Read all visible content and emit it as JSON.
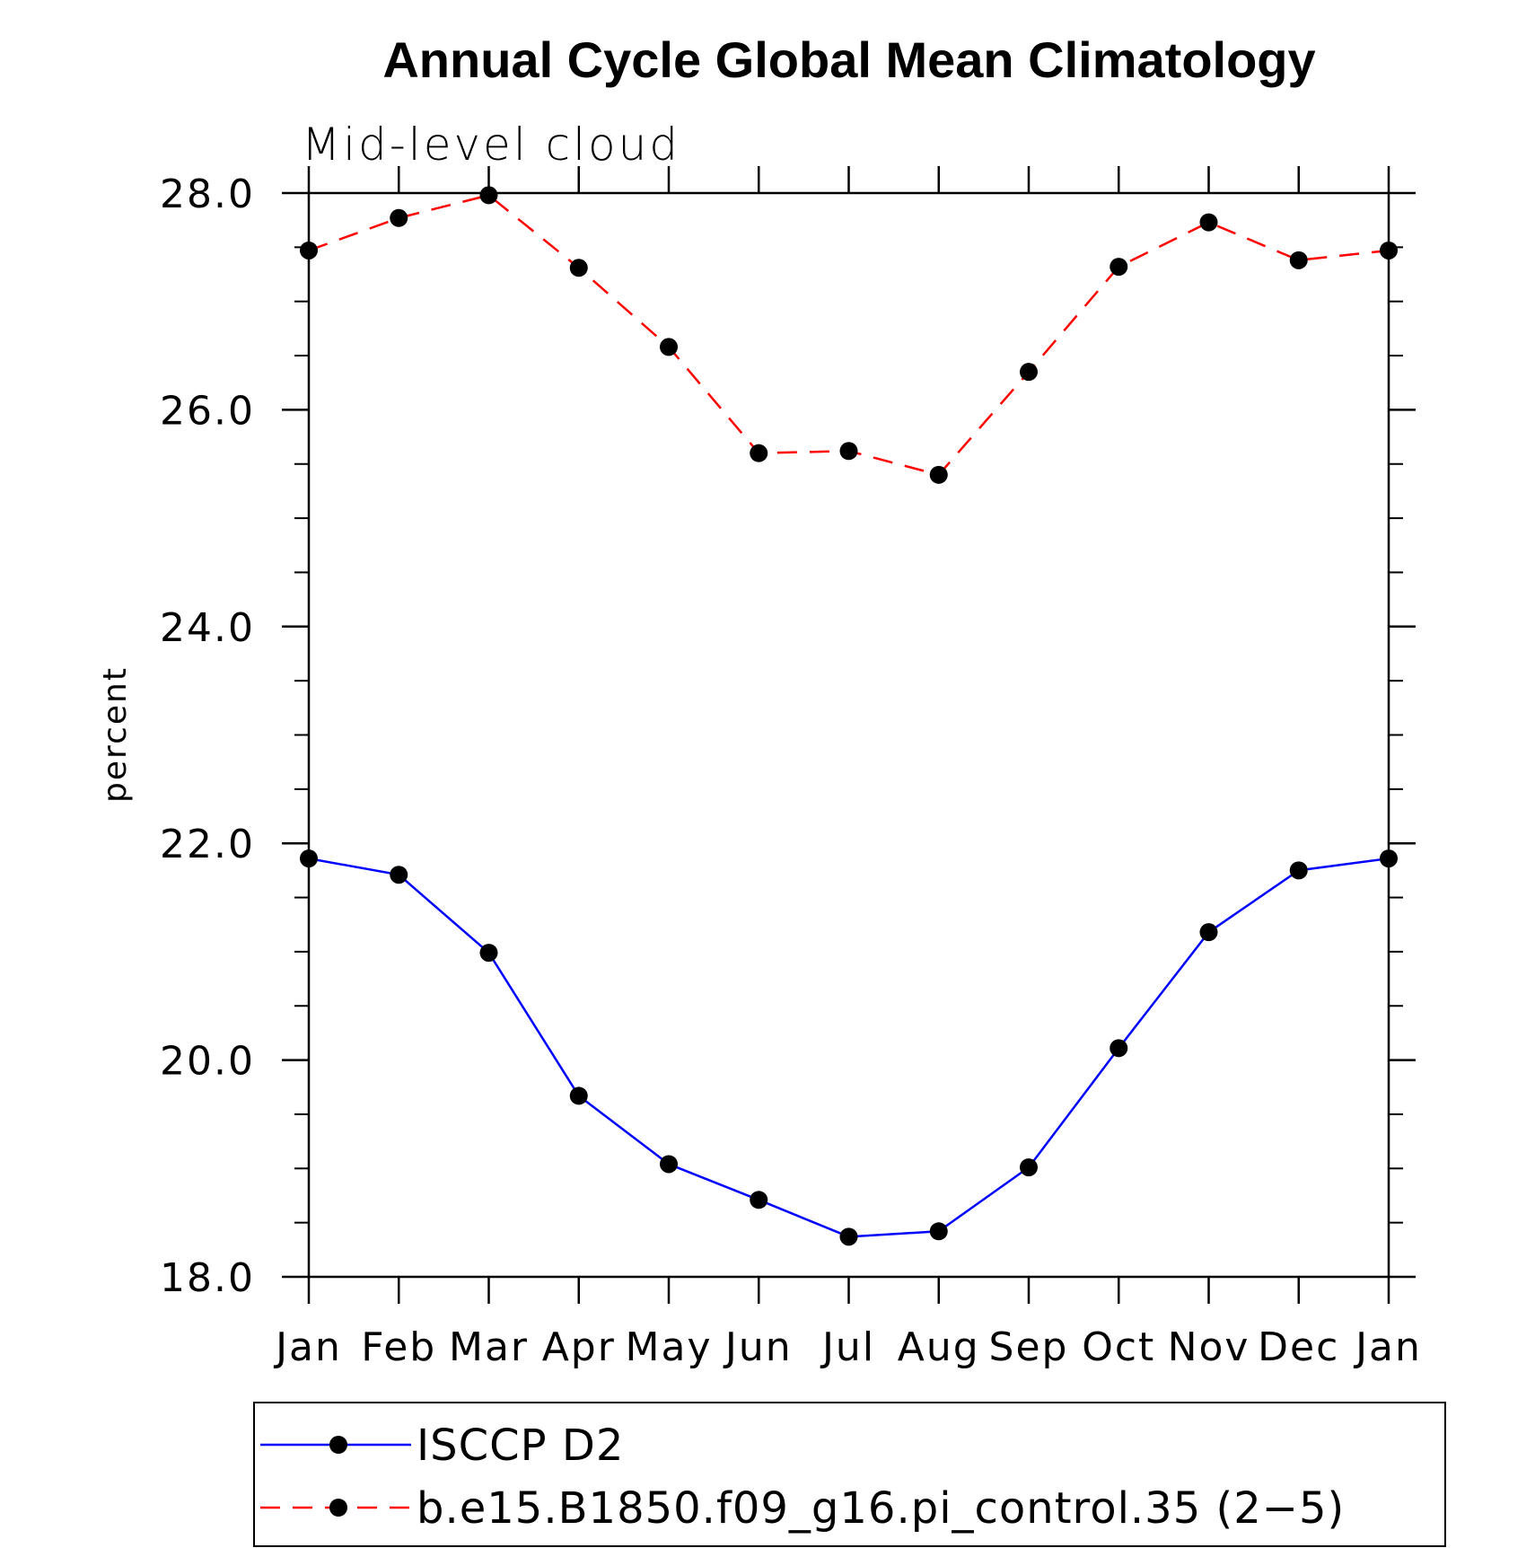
{
  "chart_data": {
    "type": "line",
    "title": "Annual Cycle Global Mean Climatology",
    "subtitle": "Mid-level cloud",
    "ylabel": "percent",
    "xlabel": "",
    "categories": [
      "Jan",
      "Feb",
      "Mar",
      "Apr",
      "May",
      "Jun",
      "Jul",
      "Aug",
      "Sep",
      "Oct",
      "Nov",
      "Dec",
      "Jan"
    ],
    "ylim": [
      18.0,
      28.0
    ],
    "yticks": [
      "18.0",
      "20.0",
      "22.0",
      "24.0",
      "26.0",
      "28.0"
    ],
    "grid": false,
    "legend_placement": "bottom",
    "series": [
      {
        "name": "ISCCP D2",
        "color": "#0000ff",
        "dash": "solid",
        "marker": "filled-circle",
        "values": [
          21.86,
          21.71,
          20.99,
          19.67,
          19.04,
          18.71,
          18.37,
          18.42,
          19.01,
          20.11,
          21.18,
          21.75,
          21.86
        ]
      },
      {
        "name": "b.e15.B1850.f09_g16.pi_control.35 (2−5)",
        "color": "#ff0000",
        "dash": "dashed",
        "marker": "filled-circle",
        "values": [
          27.47,
          27.77,
          27.98,
          27.31,
          26.58,
          25.6,
          25.62,
          25.4,
          26.35,
          27.32,
          27.73,
          27.38,
          27.47
        ]
      }
    ]
  }
}
